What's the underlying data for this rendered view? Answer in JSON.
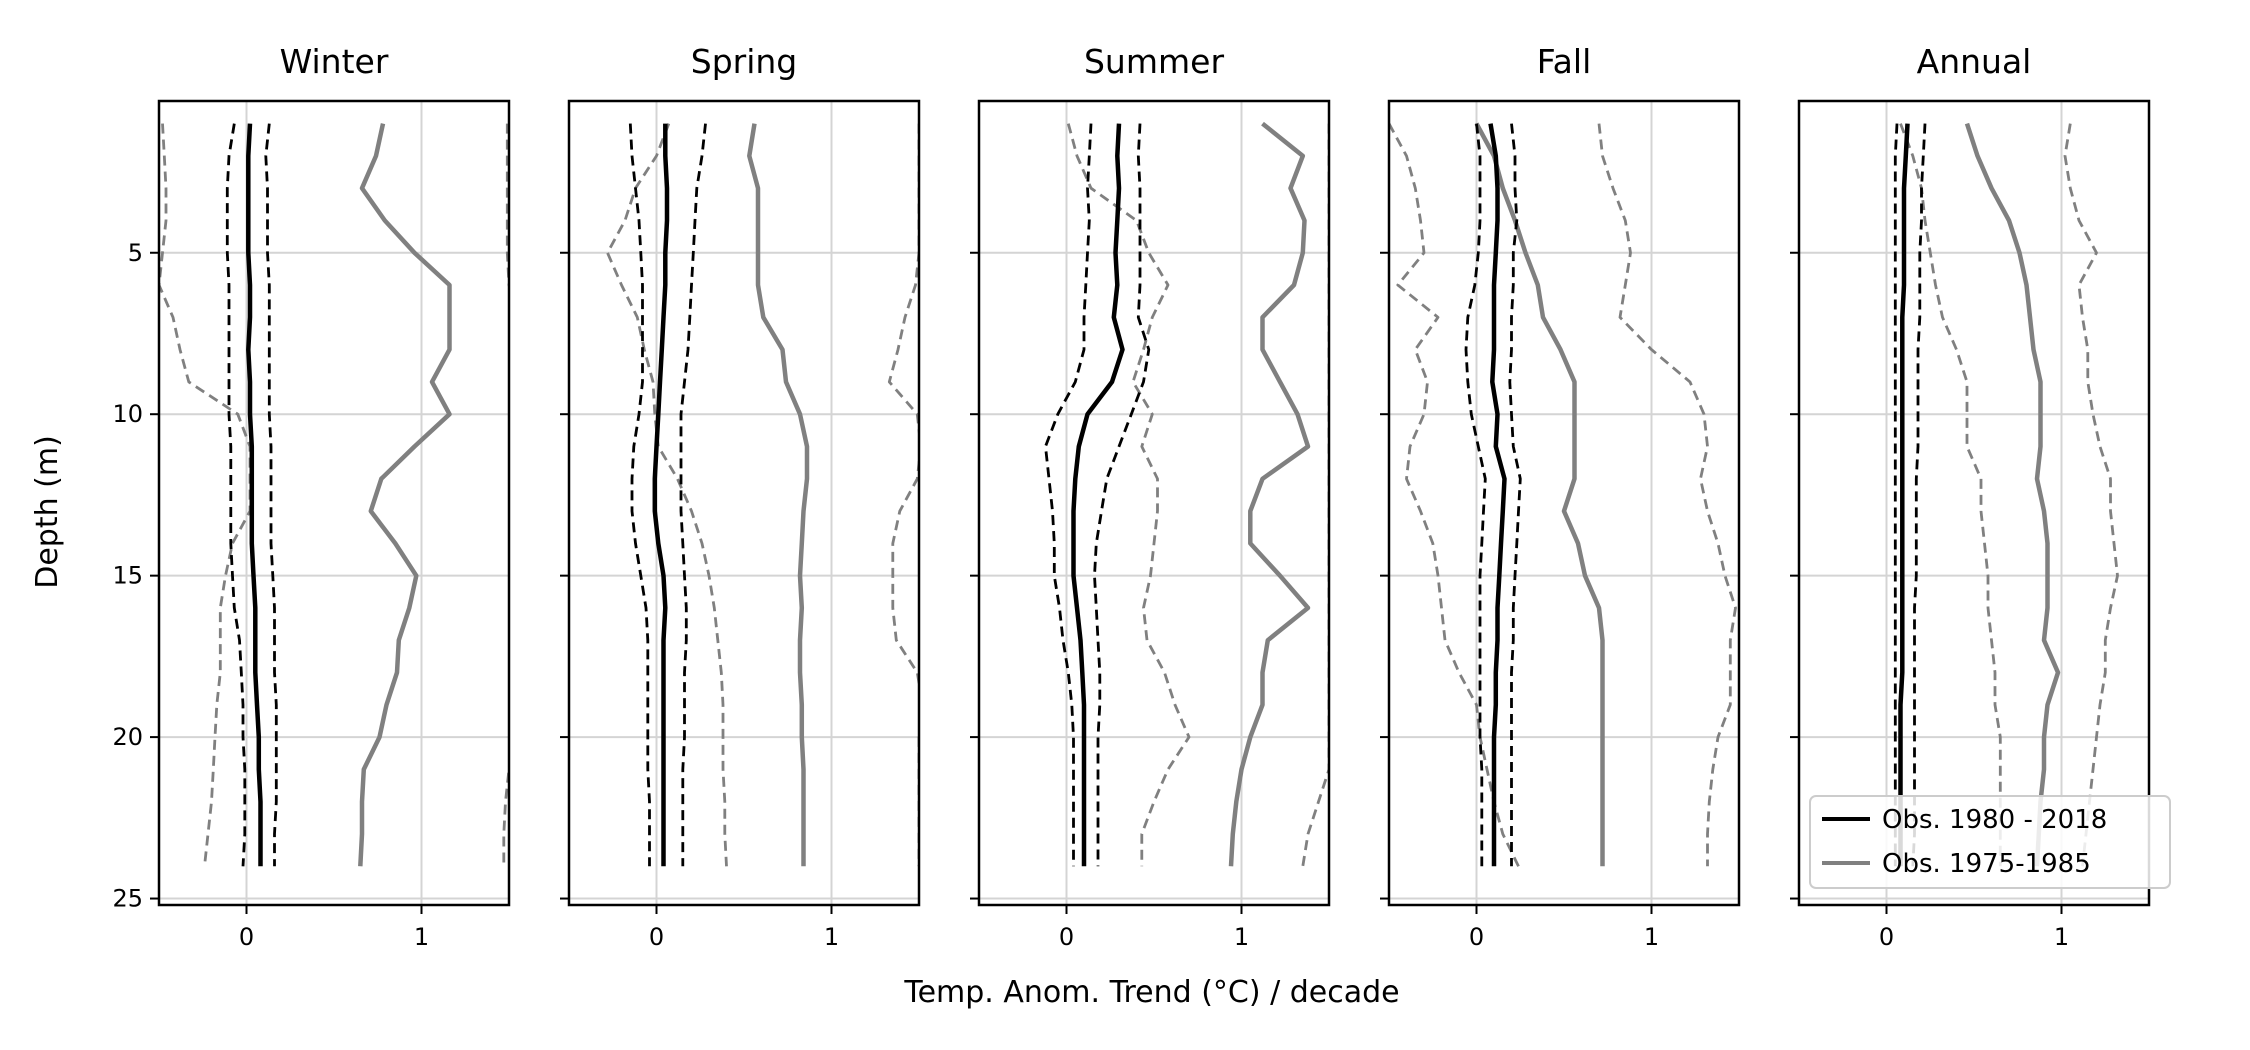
{
  "chart_data": {
    "type": "line",
    "xlabel": "Temp. Anom. Trend (°C) / decade",
    "ylabel": "Depth (m)",
    "xlim": [
      -0.5,
      1.5
    ],
    "ylim": [
      25.2,
      0.3
    ],
    "xticks": [
      0,
      1
    ],
    "yticks": [
      5,
      10,
      15,
      20,
      25
    ],
    "grid": true,
    "legend": {
      "location": "lower-right of Annual panel",
      "entries": [
        {
          "label": "Obs. 1980 - 2018",
          "color": "#000000"
        },
        {
          "label": "Obs. 1975-1985",
          "color": "#808080"
        }
      ]
    },
    "panels": [
      {
        "title": "Winter",
        "depth": [
          1,
          2,
          3,
          4,
          5,
          6,
          7,
          8,
          9,
          10,
          11,
          12,
          13,
          14,
          15,
          16,
          17,
          18,
          19,
          20,
          21,
          22,
          23,
          24
        ],
        "obs_1980_2018": [
          0.02,
          0.01,
          0.01,
          0.01,
          0.01,
          0.02,
          0.02,
          0.01,
          0.02,
          0.02,
          0.03,
          0.03,
          0.03,
          0.03,
          0.04,
          0.05,
          0.05,
          0.05,
          0.06,
          0.07,
          0.07,
          0.08,
          0.08,
          0.08
        ],
        "obs_1980_2018_ci_low": [
          -0.07,
          -0.1,
          -0.11,
          -0.11,
          -0.11,
          -0.1,
          -0.1,
          -0.1,
          -0.1,
          -0.1,
          -0.09,
          -0.09,
          -0.09,
          -0.09,
          -0.08,
          -0.07,
          -0.04,
          -0.03,
          -0.02,
          -0.02,
          -0.01,
          -0.01,
          -0.01,
          -0.02
        ],
        "obs_1980_2018_ci_high": [
          0.13,
          0.11,
          0.12,
          0.12,
          0.12,
          0.13,
          0.13,
          0.13,
          0.13,
          0.13,
          0.14,
          0.14,
          0.14,
          0.14,
          0.15,
          0.16,
          0.16,
          0.16,
          0.17,
          0.17,
          0.17,
          0.17,
          0.16,
          0.16
        ],
        "obs_1975_1985": [
          0.78,
          0.74,
          0.66,
          0.79,
          0.96,
          1.16,
          1.16,
          1.16,
          1.06,
          1.16,
          0.96,
          0.77,
          0.71,
          0.85,
          0.97,
          0.93,
          0.87,
          0.86,
          0.8,
          0.76,
          0.67,
          0.66,
          0.66,
          0.65
        ],
        "obs_1975_1985_ci_low": [
          -0.48,
          -0.47,
          -0.46,
          -0.46,
          -0.48,
          -0.5,
          -0.42,
          -0.38,
          -0.33,
          -0.05,
          0.02,
          0.02,
          0.02,
          -0.08,
          -0.12,
          -0.15,
          -0.15,
          -0.15,
          -0.17,
          -0.18,
          -0.19,
          -0.2,
          -0.22,
          -0.24
        ],
        "obs_1975_1985_ci_high": [
          1.49,
          1.49,
          1.49,
          1.49,
          1.49,
          1.5,
          1.55,
          1.6,
          1.6,
          1.6,
          1.6,
          1.6,
          1.6,
          1.6,
          1.6,
          1.6,
          1.6,
          1.6,
          1.6,
          1.6,
          1.5,
          1.48,
          1.47,
          1.47
        ]
      },
      {
        "title": "Spring",
        "depth": [
          1,
          2,
          3,
          4,
          5,
          6,
          7,
          8,
          9,
          10,
          11,
          12,
          13,
          14,
          15,
          16,
          17,
          18,
          19,
          20,
          21,
          22,
          23,
          24
        ],
        "obs_1980_2018": [
          0.05,
          0.05,
          0.06,
          0.06,
          0.05,
          0.05,
          0.04,
          0.03,
          0.02,
          0.01,
          0.0,
          -0.01,
          -0.01,
          0.01,
          0.04,
          0.05,
          0.04,
          0.04,
          0.04,
          0.04,
          0.04,
          0.04,
          0.04,
          0.04
        ],
        "obs_1980_2018_ci_low": [
          -0.15,
          -0.14,
          -0.12,
          -0.1,
          -0.09,
          -0.08,
          -0.08,
          -0.08,
          -0.08,
          -0.1,
          -0.13,
          -0.14,
          -0.14,
          -0.12,
          -0.09,
          -0.06,
          -0.05,
          -0.05,
          -0.05,
          -0.05,
          -0.05,
          -0.04,
          -0.04,
          -0.04
        ],
        "obs_1980_2018_ci_high": [
          0.28,
          0.26,
          0.23,
          0.22,
          0.21,
          0.2,
          0.19,
          0.18,
          0.16,
          0.14,
          0.14,
          0.14,
          0.14,
          0.15,
          0.16,
          0.17,
          0.17,
          0.16,
          0.16,
          0.16,
          0.15,
          0.15,
          0.15,
          0.15
        ],
        "obs_1975_1985": [
          0.56,
          0.53,
          0.58,
          0.58,
          0.58,
          0.58,
          0.61,
          0.72,
          0.74,
          0.82,
          0.86,
          0.86,
          0.84,
          0.83,
          0.82,
          0.83,
          0.82,
          0.82,
          0.83,
          0.83,
          0.84,
          0.84,
          0.84,
          0.84
        ],
        "obs_1975_1985_ci_low": [
          0.07,
          0.0,
          -0.12,
          -0.18,
          -0.28,
          -0.2,
          -0.11,
          -0.07,
          -0.02,
          -0.01,
          0.01,
          0.12,
          0.2,
          0.26,
          0.3,
          0.33,
          0.35,
          0.37,
          0.38,
          0.38,
          0.38,
          0.39,
          0.39,
          0.4
        ],
        "obs_1975_1985_ci_high": [
          1.5,
          1.5,
          1.5,
          1.5,
          1.5,
          1.48,
          1.42,
          1.38,
          1.33,
          1.49,
          1.51,
          1.49,
          1.39,
          1.35,
          1.35,
          1.35,
          1.37,
          1.49,
          1.52,
          1.5,
          1.5,
          1.5,
          1.5,
          1.5
        ]
      },
      {
        "title": "Summer",
        "depth": [
          1,
          2,
          3,
          4,
          5,
          6,
          7,
          8,
          9,
          10,
          11,
          12,
          13,
          14,
          15,
          16,
          17,
          18,
          19,
          20,
          21,
          22,
          23,
          24
        ],
        "obs_1980_2018": [
          0.3,
          0.29,
          0.3,
          0.29,
          0.28,
          0.29,
          0.27,
          0.32,
          0.26,
          0.12,
          0.07,
          0.05,
          0.04,
          0.04,
          0.04,
          0.06,
          0.08,
          0.09,
          0.1,
          0.1,
          0.1,
          0.1,
          0.1,
          0.1
        ],
        "obs_1980_2018_ci_low": [
          0.14,
          0.13,
          0.12,
          0.13,
          0.12,
          0.11,
          0.1,
          0.1,
          0.05,
          -0.05,
          -0.12,
          -0.1,
          -0.08,
          -0.07,
          -0.07,
          -0.04,
          -0.02,
          0.01,
          0.03,
          0.04,
          0.04,
          0.04,
          0.04,
          0.04
        ],
        "obs_1980_2018_ci_high": [
          0.42,
          0.41,
          0.42,
          0.42,
          0.42,
          0.42,
          0.41,
          0.47,
          0.44,
          0.37,
          0.3,
          0.23,
          0.2,
          0.17,
          0.16,
          0.17,
          0.18,
          0.19,
          0.19,
          0.18,
          0.18,
          0.18,
          0.18,
          0.18
        ],
        "obs_1975_1985": [
          1.12,
          1.35,
          1.28,
          1.36,
          1.35,
          1.3,
          1.12,
          1.12,
          1.22,
          1.32,
          1.38,
          1.12,
          1.05,
          1.05,
          1.22,
          1.38,
          1.15,
          1.12,
          1.12,
          1.05,
          1.0,
          0.97,
          0.95,
          0.94
        ],
        "obs_1975_1985_ci_low": [
          0.01,
          0.06,
          0.14,
          0.4,
          0.47,
          0.58,
          0.49,
          0.44,
          0.38,
          0.49,
          0.43,
          0.52,
          0.52,
          0.5,
          0.48,
          0.44,
          0.46,
          0.56,
          0.62,
          0.7,
          0.58,
          0.5,
          0.43,
          0.43
        ],
        "obs_1975_1985_ci_high": [
          1.5,
          1.5,
          1.5,
          1.5,
          1.5,
          1.5,
          1.5,
          1.5,
          1.5,
          1.5,
          1.5,
          1.5,
          1.5,
          1.5,
          1.5,
          1.5,
          1.5,
          1.5,
          1.5,
          1.5,
          1.5,
          1.44,
          1.38,
          1.35
        ]
      },
      {
        "title": "Fall",
        "depth": [
          1,
          2,
          3,
          4,
          5,
          6,
          7,
          8,
          9,
          10,
          11,
          12,
          13,
          14,
          15,
          16,
          17,
          18,
          19,
          20,
          21,
          22,
          23,
          24
        ],
        "obs_1980_2018": [
          0.08,
          0.11,
          0.12,
          0.12,
          0.11,
          0.1,
          0.1,
          0.1,
          0.09,
          0.12,
          0.11,
          0.16,
          0.15,
          0.14,
          0.13,
          0.12,
          0.12,
          0.11,
          0.11,
          0.1,
          0.1,
          0.1,
          0.1,
          0.1
        ],
        "obs_1980_2018_ci_low": [
          0.0,
          0.02,
          0.02,
          0.02,
          0.01,
          -0.01,
          -0.05,
          -0.06,
          -0.05,
          -0.03,
          0.01,
          0.05,
          0.04,
          0.03,
          0.02,
          0.02,
          0.02,
          0.02,
          0.02,
          0.02,
          0.03,
          0.03,
          0.03,
          0.03
        ],
        "obs_1980_2018_ci_high": [
          0.2,
          0.22,
          0.22,
          0.23,
          0.21,
          0.21,
          0.2,
          0.2,
          0.19,
          0.2,
          0.21,
          0.25,
          0.24,
          0.23,
          0.22,
          0.21,
          0.21,
          0.2,
          0.2,
          0.2,
          0.2,
          0.2,
          0.2,
          0.2
        ],
        "obs_1975_1985": [
          0.0,
          0.1,
          0.15,
          0.22,
          0.28,
          0.35,
          0.38,
          0.48,
          0.56,
          0.56,
          0.56,
          0.56,
          0.5,
          0.58,
          0.62,
          0.7,
          0.72,
          0.72,
          0.72,
          0.72,
          0.72,
          0.72,
          0.72,
          0.72
        ],
        "obs_1975_1985_ci_low": [
          -0.5,
          -0.4,
          -0.35,
          -0.32,
          -0.3,
          -0.45,
          -0.22,
          -0.35,
          -0.28,
          -0.3,
          -0.38,
          -0.4,
          -0.32,
          -0.25,
          -0.22,
          -0.2,
          -0.18,
          -0.1,
          0.0,
          0.02,
          0.06,
          0.1,
          0.15,
          0.24
        ],
        "obs_1975_1985_ci_high": [
          0.7,
          0.72,
          0.78,
          0.85,
          0.88,
          0.85,
          0.82,
          1.0,
          1.22,
          1.3,
          1.32,
          1.28,
          1.32,
          1.38,
          1.42,
          1.48,
          1.45,
          1.45,
          1.45,
          1.38,
          1.35,
          1.33,
          1.32,
          1.32
        ]
      },
      {
        "title": "Annual",
        "depth": [
          1,
          2,
          3,
          4,
          5,
          6,
          7,
          8,
          9,
          10,
          11,
          12,
          13,
          14,
          15,
          16,
          17,
          18,
          19,
          20,
          21,
          22,
          23,
          24
        ],
        "obs_1980_2018": [
          0.12,
          0.11,
          0.1,
          0.1,
          0.1,
          0.1,
          0.09,
          0.09,
          0.09,
          0.09,
          0.09,
          0.09,
          0.09,
          0.09,
          0.09,
          0.09,
          0.09,
          0.09,
          0.08,
          0.08,
          0.08,
          0.08,
          0.08,
          0.08
        ],
        "obs_1980_2018_ci_low": [
          0.06,
          0.05,
          0.05,
          0.05,
          0.05,
          0.05,
          0.05,
          0.05,
          0.05,
          0.05,
          0.05,
          0.05,
          0.05,
          0.05,
          0.05,
          0.05,
          0.05,
          0.05,
          0.05,
          0.05,
          0.05,
          0.05,
          0.05,
          0.05
        ],
        "obs_1980_2018_ci_high": [
          0.22,
          0.21,
          0.2,
          0.2,
          0.19,
          0.19,
          0.19,
          0.18,
          0.18,
          0.18,
          0.18,
          0.17,
          0.17,
          0.17,
          0.17,
          0.16,
          0.16,
          0.16,
          0.16,
          0.16,
          0.16,
          0.16,
          0.16,
          0.15
        ],
        "obs_1975_1985": [
          0.46,
          0.52,
          0.6,
          0.7,
          0.76,
          0.8,
          0.82,
          0.84,
          0.88,
          0.88,
          0.88,
          0.86,
          0.9,
          0.92,
          0.92,
          0.92,
          0.9,
          0.98,
          0.92,
          0.9,
          0.9,
          0.88,
          0.87,
          0.86
        ],
        "obs_1975_1985_ci_low": [
          0.08,
          0.15,
          0.2,
          0.22,
          0.25,
          0.28,
          0.32,
          0.4,
          0.46,
          0.46,
          0.46,
          0.54,
          0.54,
          0.56,
          0.58,
          0.58,
          0.6,
          0.62,
          0.62,
          0.65,
          0.65,
          0.65,
          0.65,
          0.65
        ],
        "obs_1975_1985_ci_high": [
          1.05,
          1.02,
          1.05,
          1.1,
          1.2,
          1.1,
          1.12,
          1.15,
          1.15,
          1.18,
          1.22,
          1.28,
          1.28,
          1.3,
          1.32,
          1.28,
          1.25,
          1.25,
          1.22,
          1.2,
          1.18,
          1.16,
          1.14,
          1.12
        ]
      }
    ]
  }
}
